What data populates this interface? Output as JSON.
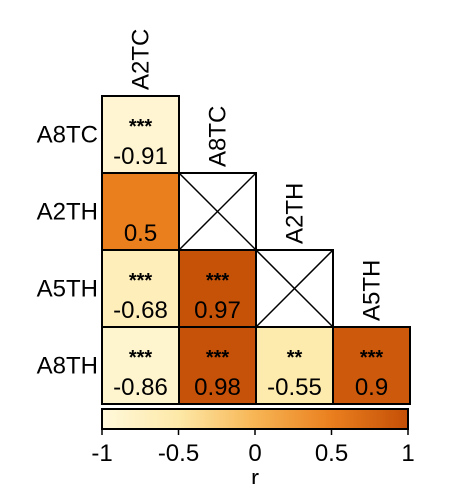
{
  "chart_data": {
    "type": "heatmap",
    "variables": [
      "A2TC",
      "A8TC",
      "A2TH",
      "A5TH",
      "A8TH"
    ],
    "column_labels": [
      "A2TC",
      "A8TC",
      "A2TH",
      "A5TH"
    ],
    "row_labels": [
      "A8TC",
      "A2TH",
      "A5TH",
      "A8TH"
    ],
    "cells": [
      {
        "row": "A8TC",
        "col": "A2TC",
        "value": -0.91,
        "label": "-0.91",
        "sig": "***"
      },
      {
        "row": "A2TH",
        "col": "A2TC",
        "value": 0.5,
        "label": "0.5",
        "sig": ""
      },
      {
        "row": "A2TH",
        "col": "A8TC",
        "value": null,
        "label": "",
        "sig": "",
        "crossed": true
      },
      {
        "row": "A5TH",
        "col": "A2TC",
        "value": -0.68,
        "label": "-0.68",
        "sig": "***"
      },
      {
        "row": "A5TH",
        "col": "A8TC",
        "value": 0.97,
        "label": "0.97",
        "sig": "***"
      },
      {
        "row": "A5TH",
        "col": "A2TH",
        "value": null,
        "label": "",
        "sig": "",
        "crossed": true
      },
      {
        "row": "A8TH",
        "col": "A2TC",
        "value": -0.86,
        "label": "-0.86",
        "sig": "***"
      },
      {
        "row": "A8TH",
        "col": "A8TC",
        "value": 0.98,
        "label": "0.98",
        "sig": "***"
      },
      {
        "row": "A8TH",
        "col": "A2TH",
        "value": -0.55,
        "label": "-0.55",
        "sig": "**"
      },
      {
        "row": "A8TH",
        "col": "A5TH",
        "value": 0.9,
        "label": "0.9",
        "sig": "***"
      }
    ],
    "colorbar": {
      "range": [
        -1,
        1
      ],
      "ticks": [
        "-1",
        "-0.5",
        "0",
        "0.5",
        "1"
      ],
      "label": "r",
      "colors": [
        "#fff8db",
        "#fde9a8",
        "#f7b554",
        "#ea7f1e",
        "#c44f07"
      ]
    }
  }
}
